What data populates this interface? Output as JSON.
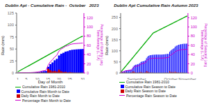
{
  "chart_data": [
    {
      "type": "bar",
      "title": "Dublin Apt - Cumulative Rain -  October   2023",
      "xlabel": "Day of Month",
      "ylabel": "Rain (mm)",
      "y2label": "Percentage of Monthly Long\nTerm Average (L.T.A)",
      "categories": [
        "1",
        null,
        null,
        null,
        "5",
        null,
        null,
        null,
        null,
        "10",
        null,
        null,
        null,
        null,
        "15",
        null,
        null,
        null,
        null,
        "20",
        null,
        null,
        null,
        null,
        "25",
        null,
        null,
        null,
        null,
        null,
        "31"
      ],
      "ylim": [
        0,
        125
      ],
      "yticks": [
        0,
        25,
        50,
        75,
        100,
        125
      ],
      "y2lim": [
        0,
        130
      ],
      "y2ticks": [
        0,
        20,
        40,
        60,
        80,
        100,
        120
      ],
      "grid": false,
      "legend": "bottom",
      "series": [
        {
          "name": "Cumulative Rain 1981-2010",
          "type": "line",
          "color": "#00aa00",
          "values": [
            2.5,
            5.0,
            7.5,
            10.0,
            12.5,
            15.0,
            17.5,
            20.0,
            22.5,
            25.0,
            27.5,
            30.0,
            32.5,
            35.0,
            37.5,
            40.0,
            42.5,
            45.0,
            47.5,
            50.0,
            52.5,
            55.0,
            57.5,
            60.0,
            62.5,
            65.0,
            67.5,
            70.0,
            72.5,
            75.0,
            77.0
          ]
        },
        {
          "name": "Cumulative Rain Month to Date",
          "type": "bar",
          "color": "#0000ff",
          "values": [
            0.2,
            0.5,
            0.6,
            0.6,
            0.6,
            0.6,
            0.7,
            0.9,
            1.2,
            1.7,
            2.1,
            3.1,
            3.9,
            4.1,
            13.1,
            18.6,
            22.1,
            26.6,
            29.6,
            36.6,
            40.1,
            42.1,
            44.6,
            45.6,
            47.4,
            48.4,
            48.9,
            49.3,
            49.6,
            49.8,
            50.1
          ]
        },
        {
          "name": "Daily Rain Month to Date",
          "type": "bar",
          "color": "#cc0000",
          "values": [
            0.2,
            0.3,
            0.1,
            0.0,
            0.0,
            0.0,
            0.1,
            0.2,
            0.3,
            0.5,
            0.4,
            1.0,
            0.8,
            0.2,
            9.0,
            5.5,
            3.5,
            4.5,
            3.0,
            7.0,
            3.5,
            2.0,
            2.5,
            1.0,
            1.8,
            1.0,
            0.5,
            0.4,
            0.3,
            0.2,
            0.3
          ]
        },
        {
          "name": "Percentage Rain Month to Date",
          "type": "line",
          "color": "#cc00cc",
          "axis": "y2",
          "values": [
            0.2597,
            0.6494,
            0.7792,
            0.7792,
            0.7792,
            0.7792,
            0.9091,
            1.1688,
            1.5584,
            2.2078,
            2.7273,
            4.026,
            5.0649,
            5.3247,
            17.013,
            24.1558,
            28.7013,
            34.5455,
            38.4416,
            47.5325,
            52.0779,
            54.6753,
            57.9221,
            59.2208,
            61.5584,
            62.8571,
            63.5065,
            64.026,
            64.4156,
            64.6753,
            65.0649
          ]
        }
      ]
    },
    {
      "type": "bar",
      "title": "Dublin Apt Cumulative Rain Autumn 2023",
      "ylabel": "Rain (mm)",
      "y2label": "Percentage of Seasonal Long\nTerm Average (L.T.A)",
      "categories": [
        null,
        null,
        null,
        null,
        null,
        null,
        null,
        null,
        null,
        null,
        null,
        null,
        null,
        null,
        "September",
        null,
        null,
        null,
        null,
        null,
        null,
        null,
        null,
        null,
        null,
        null,
        null,
        null,
        null,
        null,
        null,
        null,
        null,
        null,
        null,
        null,
        null,
        null,
        null,
        null,
        null,
        null,
        null,
        null,
        null,
        "October",
        null,
        null,
        null,
        null,
        null,
        null,
        null,
        null,
        null,
        null,
        null,
        null,
        null,
        null,
        "November"
      ],
      "ylim": [
        0,
        270
      ],
      "yticks": [
        0,
        50,
        100,
        150,
        200,
        250
      ],
      "y2lim": [
        0,
        130
      ],
      "y2ticks": [
        0,
        20,
        40,
        60,
        80,
        100,
        120
      ],
      "grid": false,
      "legend": "bottom",
      "series": [
        {
          "name": "Cumulative Rain 1981-2010",
          "type": "line",
          "color": "#00aa00",
          "values": [
            6.0,
            12.0,
            18.0,
            24.0,
            30.0,
            36.0,
            42.0,
            48.0,
            54.0,
            60.0,
            66.0,
            72.0,
            78.0,
            84.0,
            90.0,
            96.0,
            102.0,
            108.0,
            114.0,
            120.0,
            126.0,
            132.0,
            138.0,
            144.0,
            150.0,
            156.0,
            162.0,
            168.0,
            174.0,
            180.0,
            182.5,
            185.0,
            187.5,
            190.0,
            192.5,
            195.0,
            197.5,
            200.0,
            202.5,
            205.0,
            207.5,
            210.0,
            212.5,
            215.0,
            217.5,
            220.0,
            222.5,
            225.0,
            227.5,
            230.0,
            232.5,
            235.0,
            237.5,
            240.0,
            242.5,
            245.0,
            247.5,
            250.0,
            252.5,
            255.0,
            257.0
          ]
        },
        {
          "name": "Cumulative Rain Season to Date",
          "type": "bar",
          "color": "#0000ff",
          "values": [
            4.5,
            6.0,
            6.8,
            8.8,
            11.8,
            12.8,
            13.3,
            13.6,
            14.4,
            15.9,
            20.4,
            28.4,
            34.4,
            36.9,
            38.4,
            39.2,
            41.0,
            44.5,
            50.0,
            52.0,
            53.0,
            54.5,
            57.5,
            66.5,
            73.5,
            77.5,
            80.0,
            81.0,
            81.5,
            82.3,
            82.5,
            82.8,
            82.9,
            82.9,
            82.9,
            82.9,
            83.0,
            83.2,
            83.5,
            84.0,
            84.4,
            85.4,
            86.2,
            86.4,
            95.4,
            100.9,
            104.4,
            108.9,
            111.9,
            118.9,
            122.4,
            124.4,
            126.9,
            127.9,
            129.7,
            130.7,
            131.2,
            131.6,
            131.9,
            132.1,
            132.4
          ]
        },
        {
          "name": "Daily Rain Season to Date",
          "type": "bar",
          "color": "#cc0000",
          "values": [
            4.5,
            1.5,
            0.8,
            2.0,
            3.0,
            1.0,
            0.5,
            0.3,
            0.8,
            1.5,
            4.5,
            8.0,
            6.0,
            2.5,
            1.5,
            0.8,
            1.8,
            3.5,
            5.5,
            2.0,
            1.0,
            1.5,
            3.0,
            9.0,
            7.0,
            4.0,
            2.5,
            1.0,
            0.5,
            0.8,
            0.2,
            0.3,
            0.1,
            0.0,
            0.0,
            0.0,
            0.1,
            0.2,
            0.3,
            0.5,
            0.4,
            1.0,
            0.8,
            0.2,
            9.0,
            5.5,
            3.5,
            4.5,
            3.0,
            7.0,
            3.5,
            2.0,
            2.5,
            1.0,
            1.8,
            1.0,
            0.5,
            0.4,
            0.3,
            0.2,
            0.3
          ]
        },
        {
          "name": "Percentage Rain Season to Date",
          "type": "line",
          "color": "#cc00cc",
          "axis": "y2",
          "values": [
            1.751,
            2.3346,
            2.6459,
            3.4241,
            4.5914,
            4.9805,
            5.1751,
            5.2918,
            5.6031,
            6.1868,
            7.9377,
            11.0506,
            13.3852,
            14.358,
            14.9416,
            15.2529,
            15.9533,
            17.3152,
            19.4553,
            20.2335,
            20.6226,
            21.2062,
            22.3735,
            25.8755,
            28.5992,
            30.1556,
            31.1284,
            31.5175,
            31.7121,
            32.0233,
            32.1012,
            32.2179,
            32.2568,
            32.2568,
            32.2568,
            32.2568,
            32.2957,
            32.3735,
            32.4903,
            32.6848,
            32.8405,
            33.2296,
            33.5409,
            33.6187,
            37.1206,
            39.2607,
            40.6226,
            42.3735,
            43.5409,
            46.2646,
            47.6265,
            48.4047,
            49.3774,
            49.7665,
            50.4669,
            50.856,
            51.0506,
            51.2062,
            51.323,
            51.4008,
            51.5175
          ]
        }
      ]
    }
  ]
}
